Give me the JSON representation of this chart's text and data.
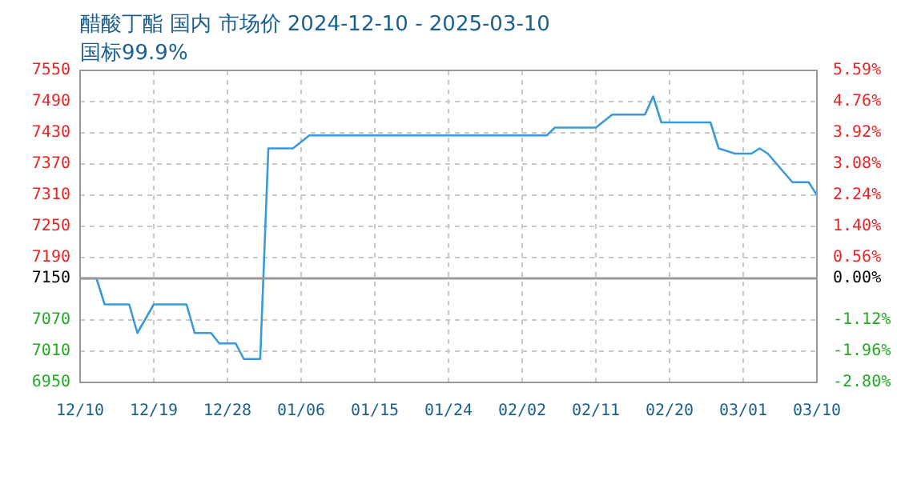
{
  "chart_data": {
    "type": "line",
    "title": "醋酸丁酯 国内 市场价 2024-12-10 - 2025-03-10",
    "subtitle": "国标99.9%",
    "x": [
      "2024-12-10",
      "2024-12-12",
      "2024-12-13",
      "2024-12-16",
      "2024-12-17",
      "2024-12-19",
      "2024-12-23",
      "2024-12-24",
      "2024-12-26",
      "2024-12-27",
      "2024-12-29",
      "2024-12-30",
      "2025-01-01",
      "2025-01-02",
      "2025-01-05",
      "2025-01-07",
      "2025-02-05",
      "2025-02-06",
      "2025-02-11",
      "2025-02-13",
      "2025-02-17",
      "2025-02-18",
      "2025-02-19",
      "2025-02-25",
      "2025-02-26",
      "2025-02-28",
      "2025-03-02",
      "2025-03-03",
      "2025-03-04",
      "2025-03-07",
      "2025-03-09",
      "2025-03-10"
    ],
    "series": [
      {
        "color": "#3a9ad9",
        "values": [
          7150,
          7150,
          7100,
          7100,
          7045,
          7100,
          7100,
          7045,
          7045,
          7025,
          7025,
          6995,
          6995,
          7400,
          7400,
          7425,
          7425,
          7440,
          7440,
          7465,
          7465,
          7500,
          7450,
          7450,
          7400,
          7390,
          7390,
          7400,
          7390,
          7335,
          7335,
          7310
        ]
      }
    ],
    "xlim": [
      "2024-12-10",
      "2025-03-10"
    ],
    "xticks": [
      {
        "value": "2024-12-10",
        "label": "12/10"
      },
      {
        "value": "2024-12-19",
        "label": "12/19"
      },
      {
        "value": "2024-12-28",
        "label": "12/28"
      },
      {
        "value": "2025-01-06",
        "label": "01/06"
      },
      {
        "value": "2025-01-15",
        "label": "01/15"
      },
      {
        "value": "2025-01-24",
        "label": "01/24"
      },
      {
        "value": "2025-02-02",
        "label": "02/02"
      },
      {
        "value": "2025-02-11",
        "label": "02/11"
      },
      {
        "value": "2025-02-20",
        "label": "02/20"
      },
      {
        "value": "2025-03-01",
        "label": "03/01"
      },
      {
        "value": "2025-03-10",
        "label": "03/10"
      }
    ],
    "ylim": [
      6950,
      7550
    ],
    "yticks": [
      6950,
      7010,
      7070,
      7150,
      7190,
      7250,
      7310,
      7370,
      7430,
      7490,
      7550
    ],
    "y2lim": [
      -2.8,
      5.59
    ],
    "y2ticks": [
      {
        "value": -2.8,
        "label": "-2.80%"
      },
      {
        "value": -1.96,
        "label": "-1.96%"
      },
      {
        "value": -1.12,
        "label": "-1.12%"
      },
      {
        "value": 0,
        "label": "0.00%"
      },
      {
        "value": 0.56,
        "label": "0.56%"
      },
      {
        "value": 1.4,
        "label": "1.40%"
      },
      {
        "value": 2.24,
        "label": "2.24%"
      },
      {
        "value": 3.08,
        "label": "3.08%"
      },
      {
        "value": 3.92,
        "label": "3.92%"
      },
      {
        "value": 4.76,
        "label": "4.76%"
      },
      {
        "value": 5.59,
        "label": "5.59%"
      }
    ],
    "ref_lines": [
      {
        "axis": "y",
        "value": 7150,
        "color": "#999999"
      }
    ],
    "grid": true,
    "legend": false,
    "marker": "none",
    "line_style": "solid"
  }
}
